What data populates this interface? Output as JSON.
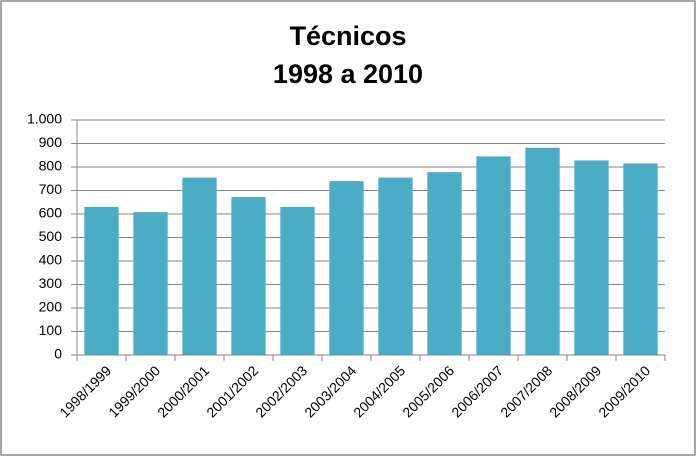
{
  "chart_data": {
    "type": "bar",
    "title": "Técnicos",
    "subtitle": "1998 a 2010",
    "categories": [
      "1998/1999",
      "1999/2000",
      "2000/2001",
      "2001/2002",
      "2002/2003",
      "2003/2004",
      "2004/2005",
      "2005/2006",
      "2006/2007",
      "2007/2008",
      "2008/2009",
      "2009/2010"
    ],
    "values": [
      630,
      608,
      755,
      672,
      630,
      740,
      755,
      778,
      845,
      882,
      828,
      815
    ],
    "color": "#4bacc6",
    "ylim": [
      0,
      1000
    ],
    "yticks": [
      0,
      100,
      200,
      300,
      400,
      500,
      600,
      700,
      800,
      900,
      {
        "value": 1000,
        "label": "1.000"
      }
    ],
    "grid": true
  }
}
